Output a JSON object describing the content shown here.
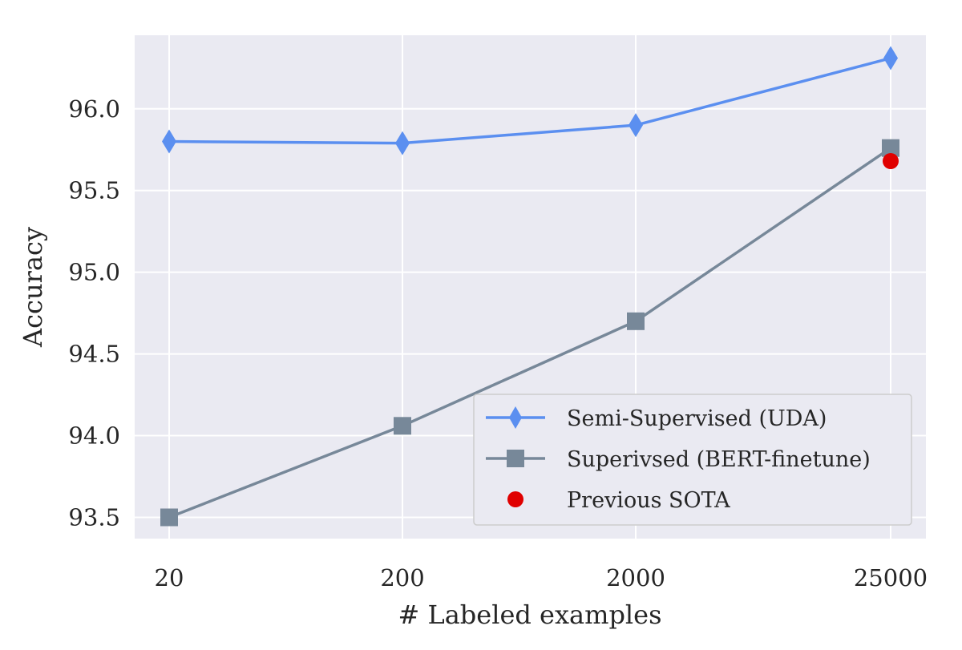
{
  "chart_data": {
    "type": "line",
    "title": "",
    "xlabel": "# Labeled examples",
    "ylabel": "Accuracy",
    "categories": [
      "20",
      "200",
      "2000",
      "25000"
    ],
    "ylim": [
      93.37,
      96.45
    ],
    "yticks": [
      "93.5",
      "94.0",
      "94.5",
      "95.0",
      "95.5",
      "96.0"
    ],
    "grid": true,
    "legend_position": "lower-right",
    "series": [
      {
        "name": "Semi-Supervised (UDA)",
        "marker": "diamond",
        "color": "#5B8FF0",
        "values": [
          95.8,
          95.79,
          95.9,
          96.31
        ]
      },
      {
        "name": "Superivsed (BERT-finetune)",
        "marker": "square",
        "color": "#778899",
        "values": [
          93.5,
          94.06,
          94.7,
          95.76
        ]
      },
      {
        "name": "Previous SOTA",
        "marker": "circle",
        "color": "#E00000",
        "points": [
          {
            "category": "25000",
            "value": 95.68
          }
        ]
      }
    ]
  }
}
